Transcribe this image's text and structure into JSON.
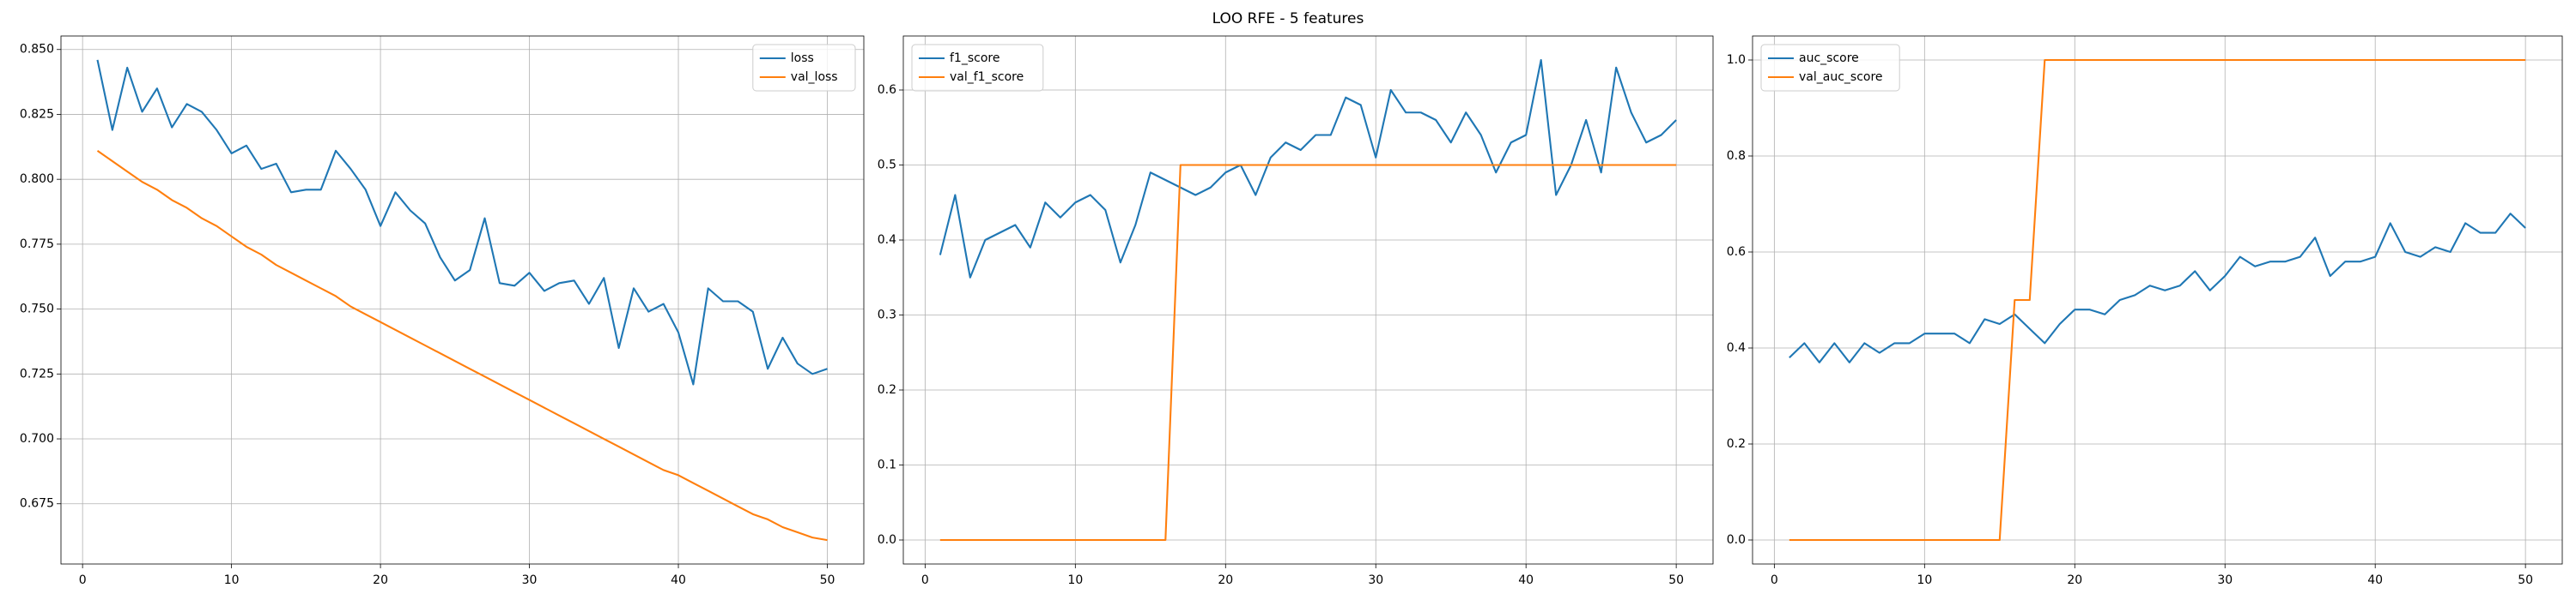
{
  "title": "LOO RFE - 5 features",
  "chart_data": [
    {
      "type": "line",
      "legend": "upper right",
      "grid": true,
      "x": [
        1,
        2,
        3,
        4,
        5,
        6,
        7,
        8,
        9,
        10,
        11,
        12,
        13,
        14,
        15,
        16,
        17,
        18,
        19,
        20,
        21,
        22,
        23,
        24,
        25,
        26,
        27,
        28,
        29,
        30,
        31,
        32,
        33,
        34,
        35,
        36,
        37,
        38,
        39,
        40,
        41,
        42,
        43,
        44,
        45,
        46,
        47,
        48,
        49,
        50
      ],
      "xlim": [
        -1.45,
        52.45
      ],
      "xticks": [
        0,
        10,
        20,
        30,
        40,
        50
      ],
      "ylim": [
        0.6518,
        0.8552
      ],
      "yticks": [
        0.675,
        {
          "value": 0.7,
          "label": "0.700"
        },
        0.725,
        {
          "value": 0.75,
          "label": "0.750"
        },
        0.775,
        {
          "value": 0.8,
          "label": "0.800"
        },
        0.825,
        {
          "value": 0.85,
          "label": "0.850"
        }
      ],
      "series": [
        {
          "name": "loss",
          "color": "#1f77b4",
          "values": [
            0.846,
            0.819,
            0.843,
            0.826,
            0.835,
            0.82,
            0.829,
            0.826,
            0.819,
            0.81,
            0.813,
            0.804,
            0.806,
            0.795,
            0.796,
            0.796,
            0.811,
            0.804,
            0.796,
            0.782,
            0.795,
            0.788,
            0.783,
            0.77,
            0.761,
            0.765,
            0.785,
            0.76,
            0.759,
            0.764,
            0.757,
            0.76,
            0.761,
            0.752,
            0.762,
            0.735,
            0.758,
            0.749,
            0.752,
            0.741,
            0.721,
            0.758,
            0.753,
            0.753,
            0.749,
            0.727,
            0.739,
            0.729,
            0.725,
            0.727
          ]
        },
        {
          "name": "val_loss",
          "color": "#ff7f0e",
          "values": [
            0.811,
            0.807,
            0.803,
            0.799,
            0.796,
            0.792,
            0.789,
            0.785,
            0.782,
            0.778,
            0.774,
            0.771,
            0.767,
            0.764,
            0.761,
            0.758,
            0.755,
            0.751,
            0.748,
            0.745,
            0.742,
            0.739,
            0.736,
            0.733,
            0.73,
            0.727,
            0.724,
            0.721,
            0.718,
            0.715,
            0.712,
            0.709,
            0.706,
            0.703,
            0.7,
            0.697,
            0.694,
            0.691,
            0.688,
            0.686,
            0.683,
            0.68,
            0.677,
            0.674,
            0.671,
            0.669,
            0.666,
            0.664,
            0.662,
            0.661
          ]
        }
      ]
    },
    {
      "type": "line",
      "legend": "upper left",
      "grid": true,
      "x": [
        1,
        2,
        3,
        4,
        5,
        6,
        7,
        8,
        9,
        10,
        11,
        12,
        13,
        14,
        15,
        16,
        17,
        18,
        19,
        20,
        21,
        22,
        23,
        24,
        25,
        26,
        27,
        28,
        29,
        30,
        31,
        32,
        33,
        34,
        35,
        36,
        37,
        38,
        39,
        40,
        41,
        42,
        43,
        44,
        45,
        46,
        47,
        48,
        49,
        50
      ],
      "xlim": [
        -1.45,
        52.45
      ],
      "xticks": [
        0,
        10,
        20,
        30,
        40,
        50
      ],
      "ylim": [
        -0.032,
        0.672
      ],
      "yticks": [
        {
          "value": 0,
          "label": "0.0"
        },
        0.1,
        0.2,
        0.3,
        0.4,
        0.5,
        0.6
      ],
      "series": [
        {
          "name": "f1_score",
          "color": "#1f77b4",
          "values": [
            0.38,
            0.46,
            0.35,
            0.4,
            0.41,
            0.42,
            0.39,
            0.45,
            0.43,
            0.45,
            0.46,
            0.44,
            0.37,
            0.42,
            0.49,
            0.48,
            0.47,
            0.46,
            0.47,
            0.49,
            0.5,
            0.46,
            0.51,
            0.53,
            0.52,
            0.54,
            0.54,
            0.59,
            0.58,
            0.51,
            0.6,
            0.57,
            0.57,
            0.56,
            0.53,
            0.57,
            0.54,
            0.49,
            0.53,
            0.54,
            0.64,
            0.46,
            0.5,
            0.56,
            0.49,
            0.63,
            0.57,
            0.53,
            0.54,
            0.56
          ]
        },
        {
          "name": "val_f1_score",
          "color": "#ff7f0e",
          "values": [
            0,
            0,
            0,
            0,
            0,
            0,
            0,
            0,
            0,
            0,
            0,
            0,
            0,
            0,
            0,
            0,
            0.5,
            0.5,
            0.5,
            0.5,
            0.5,
            0.5,
            0.5,
            0.5,
            0.5,
            0.5,
            0.5,
            0.5,
            0.5,
            0.5,
            0.5,
            0.5,
            0.5,
            0.5,
            0.5,
            0.5,
            0.5,
            0.5,
            0.5,
            0.5,
            0.5,
            0.5,
            0.5,
            0.5,
            0.5,
            0.5,
            0.5,
            0.5,
            0.5,
            0.5
          ]
        }
      ]
    },
    {
      "type": "line",
      "legend": "upper left",
      "grid": true,
      "x": [
        1,
        2,
        3,
        4,
        5,
        6,
        7,
        8,
        9,
        10,
        11,
        12,
        13,
        14,
        15,
        16,
        17,
        18,
        19,
        20,
        21,
        22,
        23,
        24,
        25,
        26,
        27,
        28,
        29,
        30,
        31,
        32,
        33,
        34,
        35,
        36,
        37,
        38,
        39,
        40,
        41,
        42,
        43,
        44,
        45,
        46,
        47,
        48,
        49,
        50
      ],
      "xlim": [
        -1.45,
        52.45
      ],
      "xticks": [
        0,
        10,
        20,
        30,
        40,
        50
      ],
      "ylim": [
        -0.05,
        1.05
      ],
      "yticks": [
        {
          "value": 0,
          "label": "0.0"
        },
        0.2,
        0.4,
        0.6,
        0.8,
        {
          "value": 1,
          "label": "1.0"
        }
      ],
      "series": [
        {
          "name": "auc_score",
          "color": "#1f77b4",
          "values": [
            0.38,
            0.41,
            0.37,
            0.41,
            0.37,
            0.41,
            0.39,
            0.41,
            0.41,
            0.43,
            0.43,
            0.43,
            0.41,
            0.46,
            0.45,
            0.47,
            0.44,
            0.41,
            0.45,
            0.48,
            0.48,
            0.47,
            0.5,
            0.51,
            0.53,
            0.52,
            0.53,
            0.56,
            0.52,
            0.55,
            0.59,
            0.57,
            0.58,
            0.58,
            0.59,
            0.63,
            0.55,
            0.58,
            0.58,
            0.59,
            0.66,
            0.6,
            0.59,
            0.61,
            0.6,
            0.66,
            0.64,
            0.64,
            0.68,
            0.65
          ]
        },
        {
          "name": "val_auc_score",
          "color": "#ff7f0e",
          "values": [
            0,
            0,
            0,
            0,
            0,
            0,
            0,
            0,
            0,
            0,
            0,
            0,
            0,
            0,
            0,
            0.5,
            0.5,
            1,
            1,
            1,
            1,
            1,
            1,
            1,
            1,
            1,
            1,
            1,
            1,
            1,
            1,
            1,
            1,
            1,
            1,
            1,
            1,
            1,
            1,
            1,
            1,
            1,
            1,
            1,
            1,
            1,
            1,
            1,
            1,
            1
          ]
        }
      ]
    }
  ]
}
